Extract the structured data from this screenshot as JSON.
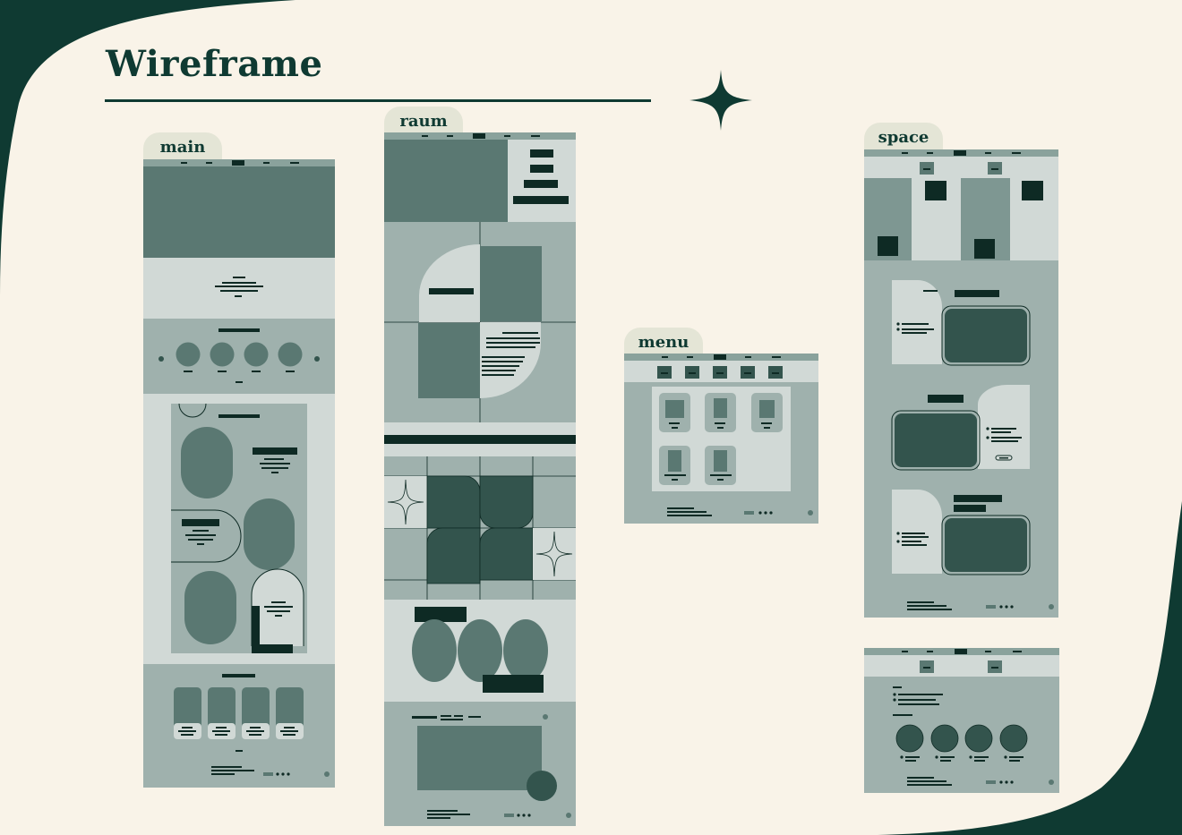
{
  "title": "Wireframe",
  "frames": {
    "main": {
      "label": "main"
    },
    "raum": {
      "label": "raum"
    },
    "menu": {
      "label": "menu"
    },
    "space": {
      "label": "space"
    }
  },
  "colors": {
    "background": "#f9f3e8",
    "corner": "#0f3a32",
    "tab": "#e4e5d6",
    "dark": "#5a7872",
    "mid": "#9fb1ad",
    "light": "#d1d9d6",
    "deep": "#33544d",
    "ink": "#0e2a24"
  },
  "icons": [
    "sparkle-star-icon"
  ]
}
